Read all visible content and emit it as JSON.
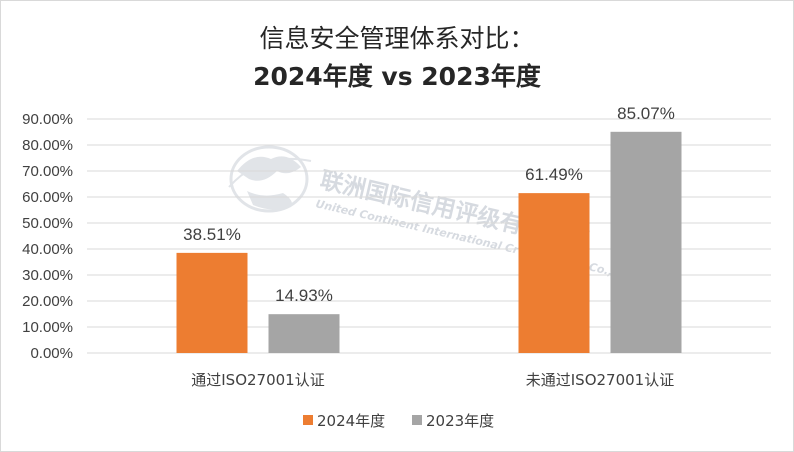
{
  "colors": {
    "series_2024": "#ed7d31",
    "series_2023": "#a5a5a5",
    "grid": "#d9d9d9",
    "text": "#404040"
  },
  "watermark": {
    "name_cn": "联洲国际信用评级有限公司",
    "name_en": "United Continent International Credit Rating Co.,Ltd",
    "icon": "globe-logo-icon"
  },
  "chart_data": {
    "type": "bar",
    "title": "信息安全管理体系对比：",
    "subtitle": "2024年度 vs 2023年度",
    "categories": [
      "通过ISO27001认证",
      "未通过ISO27001认证"
    ],
    "series": [
      {
        "name": "2024年度",
        "values": [
          38.51,
          61.49
        ],
        "labels": [
          "38.51%",
          "61.49%"
        ]
      },
      {
        "name": "2023年度",
        "values": [
          14.93,
          85.07
        ],
        "labels": [
          "14.93%",
          "85.07%"
        ]
      }
    ],
    "yticks": [
      "0.00%",
      "10.00%",
      "20.00%",
      "30.00%",
      "40.00%",
      "50.00%",
      "60.00%",
      "70.00%",
      "80.00%",
      "90.00%"
    ],
    "ylim": [
      0,
      90
    ],
    "grid": true,
    "legend": "bottom"
  }
}
